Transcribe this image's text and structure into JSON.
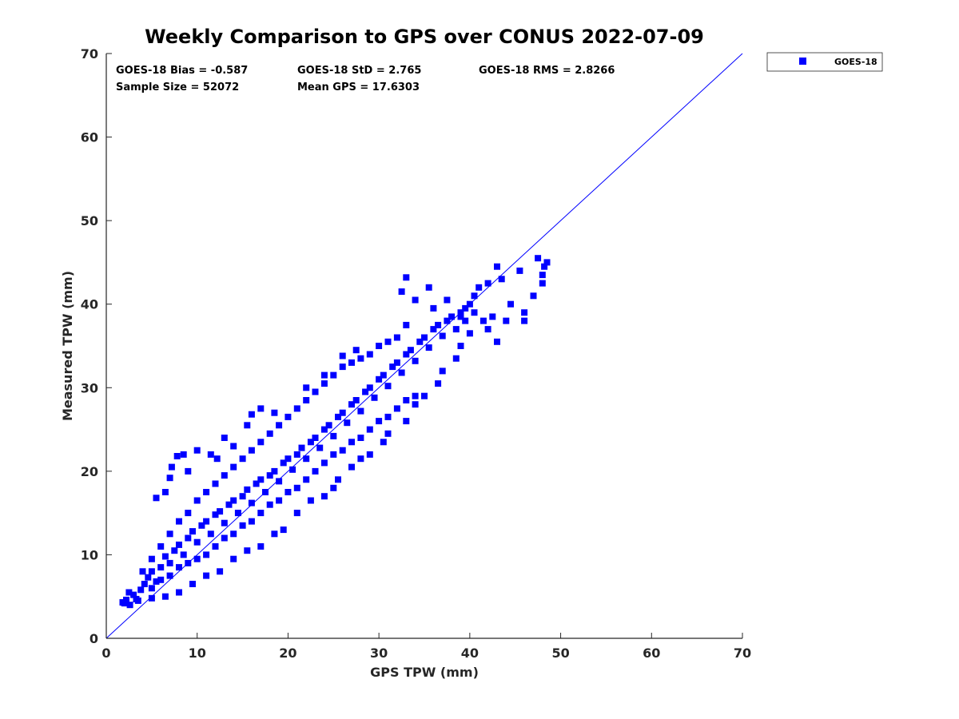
{
  "chart_data": {
    "type": "scatter",
    "title": "Weekly Comparison to GPS over CONUS 2022-07-09",
    "xlabel": "GPS TPW (mm)",
    "ylabel": "Measured TPW (mm)",
    "xlim": [
      0,
      70
    ],
    "ylim": [
      0,
      70
    ],
    "xticks": [
      "0",
      "10",
      "20",
      "30",
      "40",
      "50",
      "60",
      "70"
    ],
    "yticks": [
      "0",
      "10",
      "20",
      "30",
      "40",
      "50",
      "60",
      "70"
    ],
    "grid": false,
    "legend_position": "outside-top-right",
    "marker_color": "#0000ff",
    "reference_line": {
      "name": "1:1 line",
      "color": "#0000ff",
      "from": [
        0,
        0
      ],
      "to": [
        70,
        70
      ]
    },
    "stats": {
      "bias": "GOES-18 Bias = -0.587",
      "std": "GOES-18 StD = 2.765",
      "rms": "GOES-18 RMS = 2.8266",
      "sample_size": "Sample Size = 52072",
      "mean_gps": "Mean GPS = 17.6303"
    },
    "series": [
      {
        "name": "GOES-18",
        "color": "#0000ff",
        "marker": "square",
        "points": [
          [
            1.8,
            4.3
          ],
          [
            2.2,
            4.6
          ],
          [
            2.6,
            4.0
          ],
          [
            3.0,
            5.2
          ],
          [
            3.3,
            4.7
          ],
          [
            3.8,
            5.8
          ],
          [
            4.2,
            6.5
          ],
          [
            4.6,
            7.3
          ],
          [
            5.0,
            8.0
          ],
          [
            5.5,
            6.8
          ],
          [
            6.0,
            8.5
          ],
          [
            6.5,
            9.8
          ],
          [
            7.0,
            9.0
          ],
          [
            7.5,
            10.5
          ],
          [
            8.0,
            11.2
          ],
          [
            8.5,
            10.0
          ],
          [
            9.0,
            12.0
          ],
          [
            9.5,
            12.8
          ],
          [
            10.0,
            11.5
          ],
          [
            10.5,
            13.5
          ],
          [
            11.0,
            14.0
          ],
          [
            11.5,
            12.5
          ],
          [
            12.0,
            14.8
          ],
          [
            12.5,
            15.2
          ],
          [
            13.0,
            13.8
          ],
          [
            13.5,
            16.0
          ],
          [
            14.0,
            16.5
          ],
          [
            14.5,
            15.0
          ],
          [
            15.0,
            17.0
          ],
          [
            15.5,
            17.8
          ],
          [
            16.0,
            16.2
          ],
          [
            16.5,
            18.5
          ],
          [
            17.0,
            19.0
          ],
          [
            17.5,
            17.5
          ],
          [
            18.0,
            19.5
          ],
          [
            18.5,
            20.0
          ],
          [
            19.0,
            18.8
          ],
          [
            19.5,
            21.0
          ],
          [
            20.0,
            21.5
          ],
          [
            20.5,
            20.2
          ],
          [
            21.0,
            22.0
          ],
          [
            21.5,
            22.8
          ],
          [
            22.0,
            21.5
          ],
          [
            22.5,
            23.5
          ],
          [
            23.0,
            24.0
          ],
          [
            23.5,
            22.8
          ],
          [
            24.0,
            25.0
          ],
          [
            24.5,
            25.5
          ],
          [
            25.0,
            24.2
          ],
          [
            25.5,
            26.5
          ],
          [
            26.0,
            27.0
          ],
          [
            26.5,
            25.8
          ],
          [
            27.0,
            28.0
          ],
          [
            27.5,
            28.5
          ],
          [
            28.0,
            27.2
          ],
          [
            28.5,
            29.5
          ],
          [
            29.0,
            30.0
          ],
          [
            29.5,
            28.8
          ],
          [
            30.0,
            31.0
          ],
          [
            30.5,
            31.5
          ],
          [
            31.0,
            30.2
          ],
          [
            31.5,
            32.5
          ],
          [
            32.0,
            33.0
          ],
          [
            32.5,
            31.8
          ],
          [
            33.0,
            34.0
          ],
          [
            33.5,
            34.5
          ],
          [
            34.0,
            33.2
          ],
          [
            34.5,
            35.5
          ],
          [
            35.0,
            36.0
          ],
          [
            35.5,
            34.8
          ],
          [
            36.0,
            37.0
          ],
          [
            36.5,
            37.5
          ],
          [
            37.0,
            36.2
          ],
          [
            37.5,
            38.0
          ],
          [
            38.0,
            38.5
          ],
          [
            38.5,
            37.0
          ],
          [
            39.0,
            39.0
          ],
          [
            39.5,
            38.0
          ],
          [
            40.0,
            40.0
          ],
          [
            40.5,
            39.0
          ],
          [
            5.0,
            6.0
          ],
          [
            6.0,
            7.0
          ],
          [
            7.0,
            7.5
          ],
          [
            8.0,
            8.5
          ],
          [
            9.0,
            9.0
          ],
          [
            10.0,
            9.5
          ],
          [
            11.0,
            10.0
          ],
          [
            12.0,
            11.0
          ],
          [
            13.0,
            12.0
          ],
          [
            14.0,
            12.5
          ],
          [
            15.0,
            13.5
          ],
          [
            16.0,
            14.0
          ],
          [
            17.0,
            15.0
          ],
          [
            18.0,
            16.0
          ],
          [
            19.0,
            16.5
          ],
          [
            20.0,
            17.5
          ],
          [
            21.0,
            18.0
          ],
          [
            22.0,
            19.0
          ],
          [
            23.0,
            20.0
          ],
          [
            24.0,
            21.0
          ],
          [
            25.0,
            22.0
          ],
          [
            26.0,
            22.5
          ],
          [
            27.0,
            23.5
          ],
          [
            28.0,
            24.0
          ],
          [
            29.0,
            25.0
          ],
          [
            30.0,
            26.0
          ],
          [
            31.0,
            26.5
          ],
          [
            32.0,
            27.5
          ],
          [
            33.0,
            28.5
          ],
          [
            34.0,
            29.0
          ],
          [
            4.0,
            8.0
          ],
          [
            5.0,
            9.5
          ],
          [
            6.0,
            11.0
          ],
          [
            7.0,
            12.5
          ],
          [
            8.0,
            14.0
          ],
          [
            9.0,
            15.0
          ],
          [
            10.0,
            16.5
          ],
          [
            11.0,
            17.5
          ],
          [
            12.0,
            18.5
          ],
          [
            13.0,
            19.5
          ],
          [
            14.0,
            20.5
          ],
          [
            15.0,
            21.5
          ],
          [
            16.0,
            22.5
          ],
          [
            17.0,
            23.5
          ],
          [
            18.0,
            24.5
          ],
          [
            19.0,
            25.5
          ],
          [
            20.0,
            26.5
          ],
          [
            21.0,
            27.5
          ],
          [
            22.0,
            28.5
          ],
          [
            23.0,
            29.5
          ],
          [
            24.0,
            30.5
          ],
          [
            25.0,
            31.5
          ],
          [
            26.0,
            32.5
          ],
          [
            27.0,
            33.0
          ],
          [
            28.0,
            33.5
          ],
          [
            29.0,
            34.0
          ],
          [
            30.0,
            35.0
          ],
          [
            31.0,
            35.5
          ],
          [
            32.0,
            36.0
          ],
          [
            33.0,
            37.5
          ],
          [
            7.8,
            21.8
          ],
          [
            8.5,
            22.0
          ],
          [
            7.2,
            20.5
          ],
          [
            7.0,
            19.2
          ],
          [
            6.5,
            17.5
          ],
          [
            5.5,
            16.8
          ],
          [
            9.0,
            20.0
          ],
          [
            10.0,
            22.5
          ],
          [
            11.5,
            22.0
          ],
          [
            12.2,
            21.5
          ],
          [
            13.0,
            24.0
          ],
          [
            14.0,
            23.0
          ],
          [
            15.5,
            25.5
          ],
          [
            16.0,
            26.8
          ],
          [
            17.0,
            27.5
          ],
          [
            18.5,
            27.0
          ],
          [
            22.0,
            30.0
          ],
          [
            24.0,
            31.5
          ],
          [
            26.0,
            33.8
          ],
          [
            27.5,
            34.5
          ],
          [
            33.0,
            43.2
          ],
          [
            35.5,
            42.0
          ],
          [
            32.5,
            41.5
          ],
          [
            34.0,
            40.5
          ],
          [
            36.0,
            39.5
          ],
          [
            37.5,
            40.5
          ],
          [
            39.0,
            38.5
          ],
          [
            39.5,
            39.5
          ],
          [
            40.5,
            41.0
          ],
          [
            41.0,
            42.0
          ],
          [
            42.0,
            42.5
          ],
          [
            42.5,
            38.5
          ],
          [
            43.0,
            44.5
          ],
          [
            43.5,
            43.0
          ],
          [
            44.0,
            38.0
          ],
          [
            44.5,
            40.0
          ],
          [
            45.5,
            44.0
          ],
          [
            46.0,
            39.0
          ],
          [
            46.0,
            38.0
          ],
          [
            47.0,
            41.0
          ],
          [
            47.5,
            45.5
          ],
          [
            48.0,
            43.5
          ],
          [
            48.2,
            44.5
          ],
          [
            48.5,
            45.0
          ],
          [
            48.0,
            42.5
          ],
          [
            42.0,
            37.0
          ],
          [
            43.0,
            35.5
          ],
          [
            41.5,
            38.0
          ],
          [
            40.0,
            36.5
          ],
          [
            39.0,
            35.0
          ],
          [
            38.5,
            33.5
          ],
          [
            37.0,
            32.0
          ],
          [
            36.5,
            30.5
          ],
          [
            35.0,
            29.0
          ],
          [
            34.0,
            28.0
          ],
          [
            33.0,
            26.0
          ],
          [
            31.0,
            24.5
          ],
          [
            30.5,
            23.5
          ],
          [
            29.0,
            22.0
          ],
          [
            28.0,
            21.5
          ],
          [
            27.0,
            20.5
          ],
          [
            25.5,
            19.0
          ],
          [
            25.0,
            18.0
          ],
          [
            24.0,
            17.0
          ],
          [
            22.5,
            16.5
          ],
          [
            21.0,
            15.0
          ],
          [
            19.5,
            13.0
          ],
          [
            18.5,
            12.5
          ],
          [
            17.0,
            11.0
          ],
          [
            15.5,
            10.5
          ],
          [
            14.0,
            9.5
          ],
          [
            12.5,
            8.0
          ],
          [
            11.0,
            7.5
          ],
          [
            9.5,
            6.5
          ],
          [
            8.0,
            5.5
          ],
          [
            6.5,
            5.0
          ],
          [
            5.0,
            4.8
          ],
          [
            3.5,
            4.5
          ],
          [
            2.0,
            4.2
          ],
          [
            2.5,
            5.5
          ]
        ]
      }
    ]
  }
}
